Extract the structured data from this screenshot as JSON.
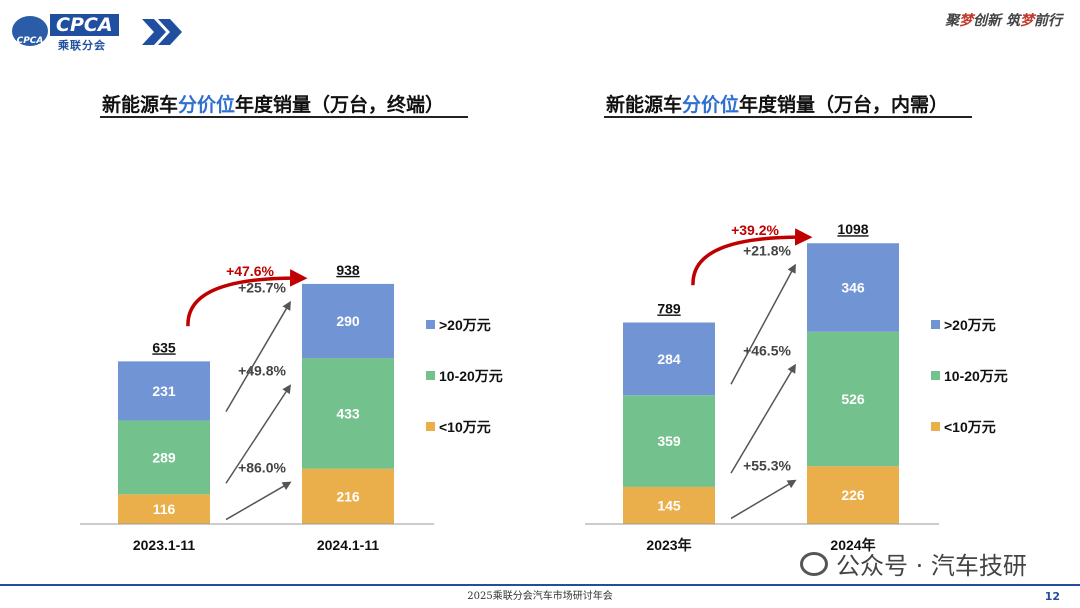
{
  "header": {
    "logo_text": "CPCA",
    "logo_cn": "乘联分会",
    "logo_badge": "CPCA",
    "slogan_part1": "聚",
    "slogan_part2": "梦",
    "slogan_part3": "创新 筑",
    "slogan_part4": "梦",
    "slogan_part5": "前行"
  },
  "footer": {
    "text": "2025乘联分会汽车市场研讨年会",
    "page": "12",
    "watermark": "公众号 · 汽车技研"
  },
  "colors": {
    "high": "#7094d4",
    "mid": "#73c18c",
    "low": "#eaae4a",
    "growth_red": "#c00000",
    "arrow_grey": "#555555"
  },
  "chart_data": [
    {
      "type": "bar",
      "stacked": true,
      "title_parts": [
        "新能源车",
        "分价位",
        "年度销量（万台，终端）"
      ],
      "categories": [
        "2023.1-11",
        "2024.1-11"
      ],
      "series": [
        {
          "name": "<10万元",
          "values": [
            116,
            216
          ]
        },
        {
          "name": "10-20万元",
          "values": [
            289,
            433
          ]
        },
        {
          "name": ">20万元",
          "values": [
            231,
            290
          ]
        }
      ],
      "totals": [
        635,
        938
      ],
      "total_growth": "+47.6%",
      "segment_growth": [
        "+86.0%",
        "+49.8%",
        "+25.7%"
      ],
      "legend": ">20万元|10-20万元|<10万元",
      "legend_placement": "right"
    },
    {
      "type": "bar",
      "stacked": true,
      "title_parts": [
        "新能源车",
        "分价位",
        "年度销量（万台，内需）"
      ],
      "categories": [
        "2023年",
        "2024年"
      ],
      "series": [
        {
          "name": "<10万元",
          "values": [
            145,
            226
          ]
        },
        {
          "name": "10-20万元",
          "values": [
            359,
            526
          ]
        },
        {
          "name": ">20万元",
          "values": [
            284,
            346
          ]
        }
      ],
      "totals": [
        789,
        1098
      ],
      "total_growth": "+39.2%",
      "segment_growth": [
        "+55.3%",
        "+46.5%",
        "+21.8%"
      ],
      "legend": ">20万元|10-20万元|<10万元",
      "legend_placement": "right"
    }
  ]
}
